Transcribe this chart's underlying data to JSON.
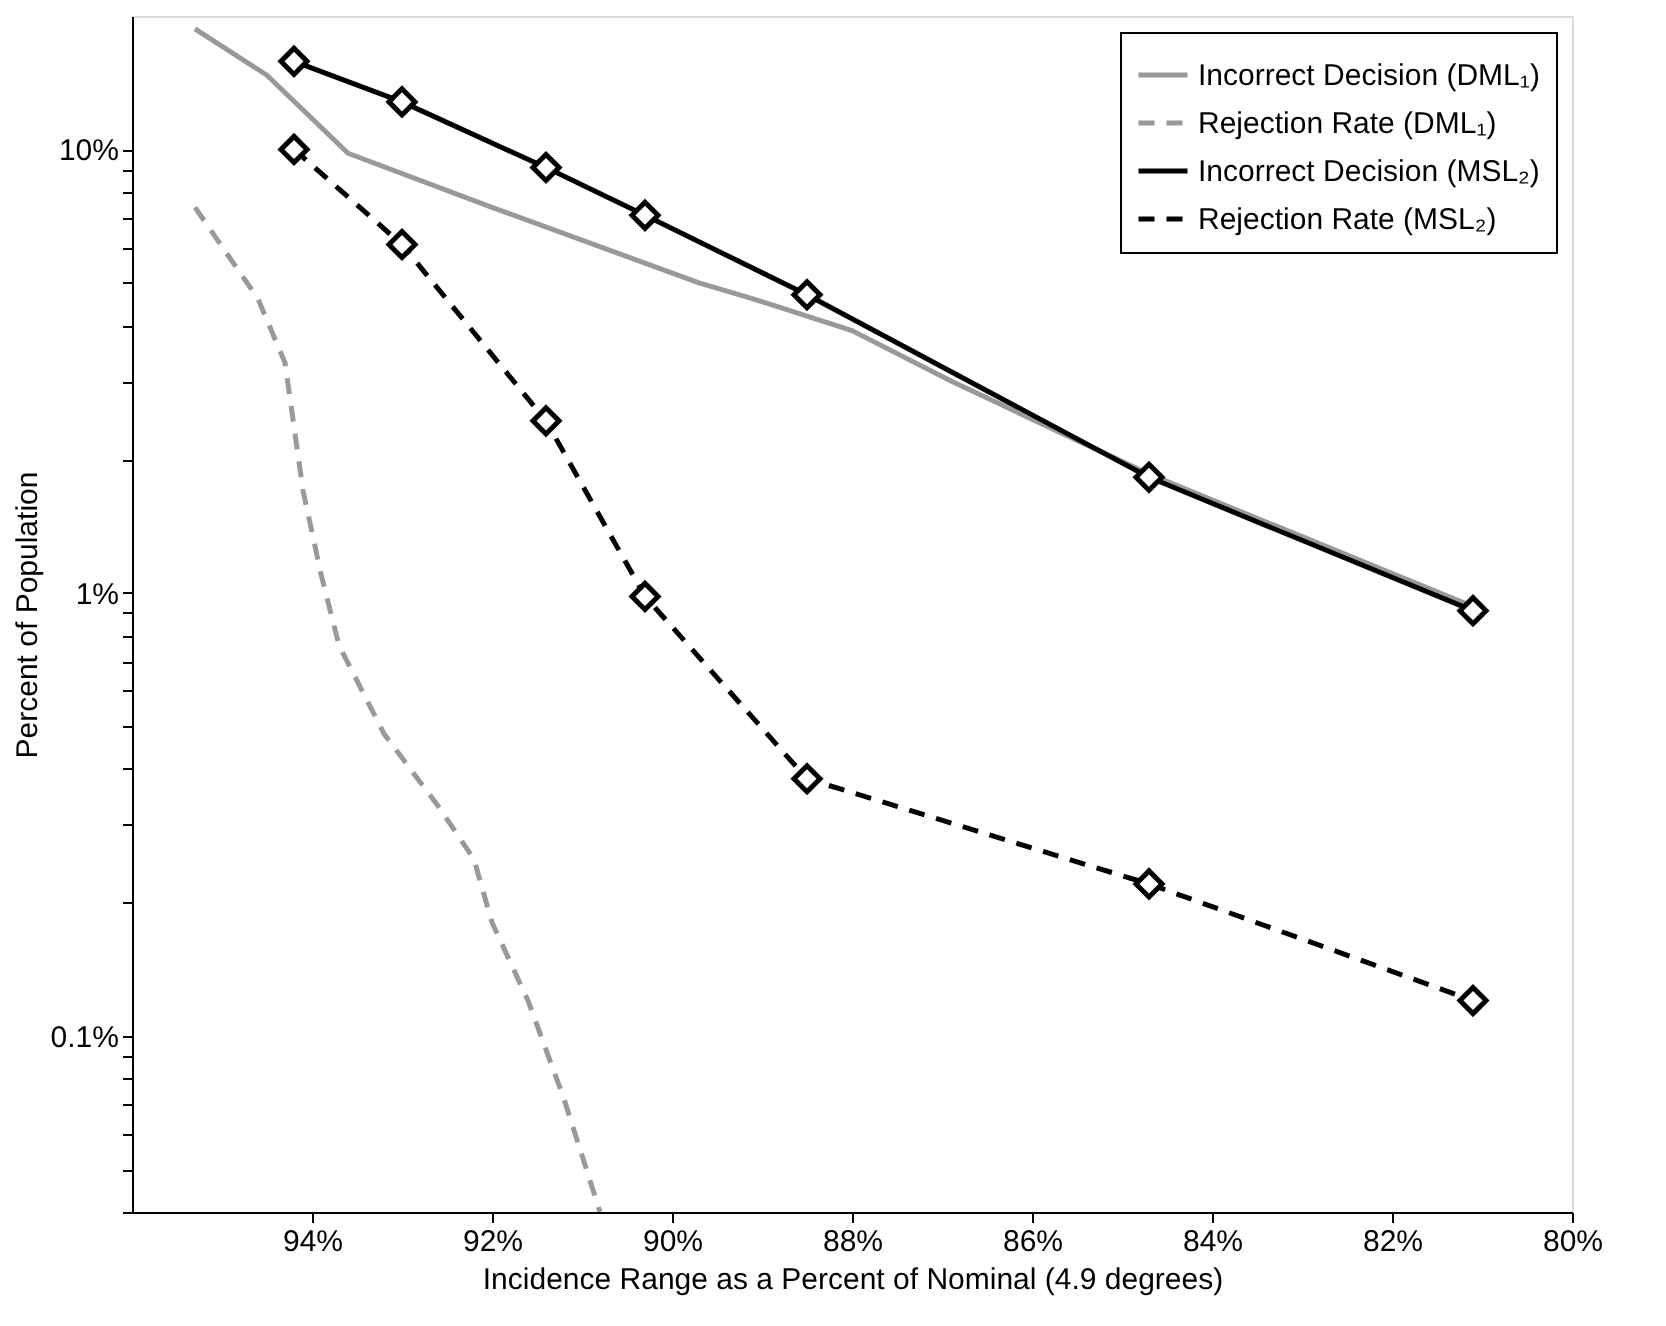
{
  "chart_data": {
    "type": "line",
    "xlabel": "Incidence Range as a Percent of Nominal (4.9 degrees)",
    "ylabel": "Percent of Population",
    "xlim": [
      96,
      80
    ],
    "xticks": [
      {
        "value": 94,
        "label": "94%"
      },
      {
        "value": 92,
        "label": "92%"
      },
      {
        "value": 90,
        "label": "90%"
      },
      {
        "value": 88,
        "label": "88%"
      },
      {
        "value": 86,
        "label": "86%"
      },
      {
        "value": 84,
        "label": "84%"
      },
      {
        "value": 82,
        "label": "82%"
      },
      {
        "value": 80,
        "label": "80%"
      }
    ],
    "ylim": [
      0.04,
      20
    ],
    "yticks": [
      {
        "value": 0.04,
        "label": null
      },
      {
        "value": 0.05,
        "label": null
      },
      {
        "value": 0.06,
        "label": null
      },
      {
        "value": 0.07,
        "label": null
      },
      {
        "value": 0.08,
        "label": null
      },
      {
        "value": 0.09,
        "label": null
      },
      {
        "value": 0.1,
        "label": "0.1%"
      },
      {
        "value": 0.2,
        "label": null
      },
      {
        "value": 0.3,
        "label": null
      },
      {
        "value": 0.4,
        "label": null
      },
      {
        "value": 0.5,
        "label": null
      },
      {
        "value": 0.6,
        "label": null
      },
      {
        "value": 0.7,
        "label": null
      },
      {
        "value": 0.8,
        "label": null
      },
      {
        "value": 0.9,
        "label": null
      },
      {
        "value": 1,
        "label": "1%"
      },
      {
        "value": 2,
        "label": null
      },
      {
        "value": 3,
        "label": null
      },
      {
        "value": 4,
        "label": null
      },
      {
        "value": 5,
        "label": null
      },
      {
        "value": 6,
        "label": null
      },
      {
        "value": 7,
        "label": null
      },
      {
        "value": 8,
        "label": null
      },
      {
        "value": 9,
        "label": null
      },
      {
        "value": 10,
        "label": "10%"
      }
    ],
    "log": "y",
    "grid": false,
    "legend": "top right",
    "series": [
      {
        "name": "Incorrect Decision (DML₁)",
        "color": "#999999",
        "line_style": "solid",
        "marker": "none",
        "x": [
          95.3,
          94.5,
          93.6,
          92.0,
          89.7,
          89.1,
          88.0,
          86.9,
          84.7,
          81.1
        ],
        "values": [
          18.7,
          14.7,
          9.8,
          7.4,
          5.0,
          4.6,
          3.9,
          3.0,
          1.85,
          0.93
        ]
      },
      {
        "name": "Rejection Rate (DML₁)",
        "color": "#999999",
        "line_style": "dashed",
        "marker": "none",
        "x": [
          95.3,
          94.6,
          94.3,
          94.1,
          93.9,
          93.7,
          93.2,
          92.6,
          92.2,
          92.0,
          91.6,
          91.2,
          90.8
        ],
        "values": [
          7.4,
          4.6,
          3.3,
          1.7,
          1.1,
          0.76,
          0.48,
          0.33,
          0.25,
          0.18,
          0.12,
          0.072,
          0.04
        ]
      },
      {
        "name": "Incorrect Decision (MSL₂)",
        "color": "#000000",
        "line_style": "solid",
        "marker": "diamond",
        "x": [
          94.2,
          93.0,
          91.4,
          90.3,
          88.5,
          84.7,
          81.1
        ],
        "values": [
          15.8,
          12.8,
          9.1,
          7.1,
          4.7,
          1.82,
          0.91
        ]
      },
      {
        "name": "Rejection Rate (MSL₂)",
        "color": "#000000",
        "line_style": "dashed",
        "marker": "diamond",
        "x": [
          94.2,
          93.0,
          91.4,
          90.3,
          88.5,
          84.7,
          81.1
        ],
        "values": [
          10,
          6.1,
          2.44,
          0.98,
          0.38,
          0.22,
          0.12
        ]
      }
    ]
  }
}
